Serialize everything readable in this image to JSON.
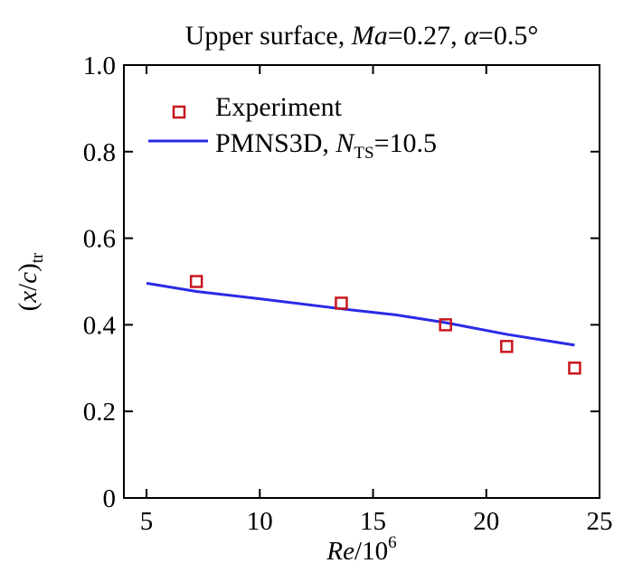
{
  "chart_data": {
    "type": "line",
    "title": {
      "prefix": "Upper surface, ",
      "ma_symbol": "Ma",
      "ma_value": "=0.27, ",
      "alpha_symbol": "α",
      "alpha_value": "=0.5°"
    },
    "xlabel": {
      "main": "Re",
      "rest": "/10",
      "sup": "6"
    },
    "ylabel": {
      "open": "(",
      "x": "x",
      "slash": "/",
      "c": "c",
      "close": ")",
      "sub": "tr"
    },
    "xlim": [
      4,
      25
    ],
    "ylim": [
      0,
      1
    ],
    "xticks": [
      "5",
      "10",
      "15",
      "20",
      "25"
    ],
    "yticks": [
      "0",
      "0.2",
      "0.4",
      "0.6",
      "0.8",
      "1.0"
    ],
    "xtick_values": [
      5,
      10,
      15,
      20,
      25
    ],
    "ytick_values": [
      0,
      0.2,
      0.4,
      0.6,
      0.8,
      1.0
    ],
    "series": [
      {
        "name": "Experiment",
        "kind": "marker",
        "color": "#c8161d",
        "x": [
          7.2,
          13.6,
          18.2,
          20.9,
          23.9
        ],
        "y": [
          0.5,
          0.45,
          0.4,
          0.35,
          0.3
        ]
      },
      {
        "name": "PMNS3D",
        "kind": "line",
        "color": "#2a2ae6",
        "x": [
          5.0,
          7.2,
          10.0,
          13.6,
          16.0,
          18.2,
          20.9,
          23.9
        ],
        "y": [
          0.496,
          0.477,
          0.46,
          0.437,
          0.423,
          0.405,
          0.378,
          0.353
        ]
      }
    ],
    "legend": {
      "position": "top-left",
      "experiment_label": "Experiment",
      "pmns_label": "PMNS3D, ",
      "n_symbol": "N",
      "n_sub": "TS",
      "n_value": "=10.5"
    }
  }
}
